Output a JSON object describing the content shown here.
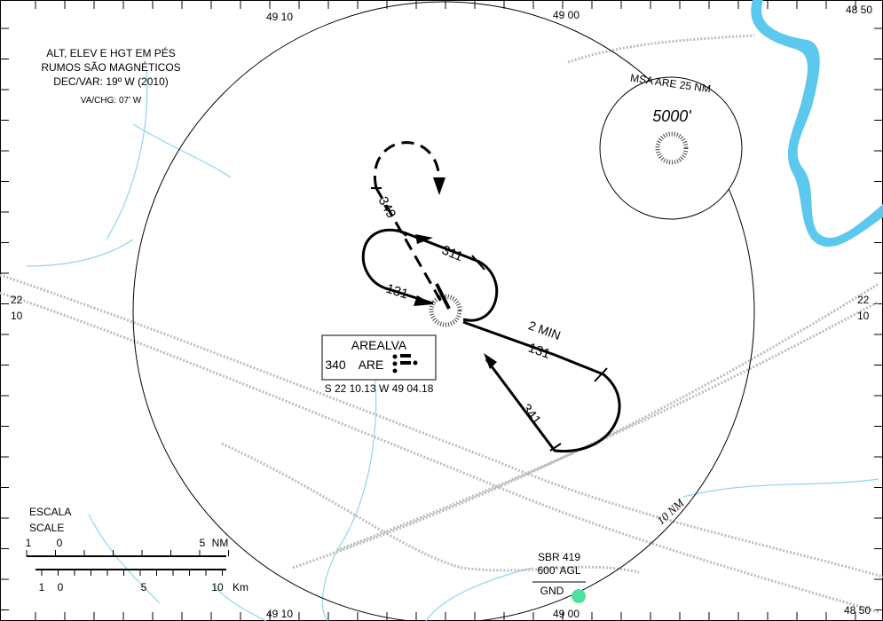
{
  "notes": [
    "ALT, ELEV E HGT EM PÉS",
    "RUMOS SÃO MAGNÉTICOS",
    "DEC/VAR: 19º W (2010)",
    "VA/CHG: 07' W"
  ],
  "grid_labels": {
    "top": [
      "49 10",
      "49 00",
      "48 50"
    ],
    "bottom": [
      "49 10",
      "49 00",
      "48 50"
    ],
    "left": [
      "22",
      "10"
    ],
    "right": [
      "22",
      "10"
    ]
  },
  "msa": {
    "label": "MSA ARE 25 NM",
    "altitude": "5000'"
  },
  "tracks": {
    "inbound_dashed": "349",
    "left_outbound": "311",
    "left_inbound": "131",
    "time": "2 MIN",
    "right_outbound": "131",
    "right_inbound": "341"
  },
  "navaid": {
    "name": "AREALVA",
    "frequency": "340",
    "ident": "ARE",
    "coordinates": "S 22 10.13 W 49 04.18"
  },
  "scale": {
    "title": [
      "ESCALA",
      "SCALE"
    ],
    "nm_labels": [
      "1",
      "0",
      "5",
      "NM"
    ],
    "km_labels": [
      "1",
      "0",
      "5",
      "10",
      "Km"
    ]
  },
  "range_label": "10 NM",
  "obstacle": {
    "name": "SBR 419",
    "height": "600' AGL",
    "base": "GND"
  }
}
